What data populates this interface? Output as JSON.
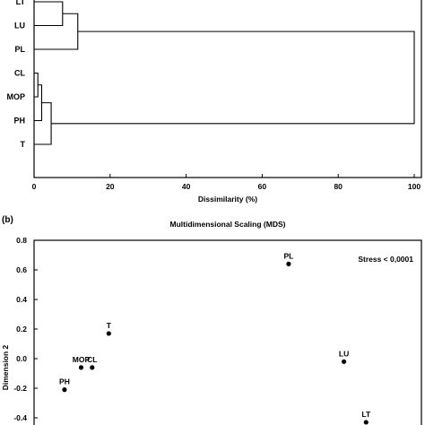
{
  "chart_data": [
    {
      "type": "dendrogram",
      "panel_label": "",
      "xlabel": "Dissimilarity (%)",
      "xlim": [
        0,
        100
      ],
      "xticks": [
        0,
        20,
        40,
        60,
        80,
        100
      ],
      "leaves": [
        "LT",
        "LU",
        "PL",
        "CL",
        "MOP",
        "PH",
        "T"
      ],
      "merges": [
        {
          "a": "LT",
          "b": "LU",
          "height": 7.5
        },
        {
          "a": "LT+LU",
          "b": "PL",
          "height": 11.5
        },
        {
          "a": "CL",
          "b": "MOP",
          "height": 1
        },
        {
          "a": "CL+MOP",
          "b": "PH",
          "height": 2
        },
        {
          "a": "CL+MOP+PH",
          "b": "T",
          "height": 4.5
        },
        {
          "a": "LT+LU+PL",
          "b": "CL+MOP+PH+T",
          "height": 100
        }
      ]
    },
    {
      "type": "scatter",
      "panel_label": "(b)",
      "title": "Multidimensional Scaling (MDS)",
      "ylabel": "Dimension 2",
      "annotation": "Stress < 0,0001",
      "ylim": [
        -0.4,
        0.8
      ],
      "yticks": [
        "-0.4",
        "-0.2",
        "0.0",
        "0.2",
        "0.4",
        "0.6",
        "0.8"
      ],
      "points": [
        {
          "label": "PL",
          "x": 0.42,
          "y": 0.64
        },
        {
          "label": "LU",
          "x": 0.62,
          "y": -0.02
        },
        {
          "label": "LT",
          "x": 0.7,
          "y": -0.43
        },
        {
          "label": "T",
          "x": -0.23,
          "y": 0.17
        },
        {
          "label": "MOP",
          "x": -0.33,
          "y": -0.06
        },
        {
          "label": "CL",
          "x": -0.29,
          "y": -0.06
        },
        {
          "label": "PH",
          "x": -0.39,
          "y": -0.21
        }
      ],
      "xlim": [
        -0.5,
        0.9
      ]
    }
  ]
}
